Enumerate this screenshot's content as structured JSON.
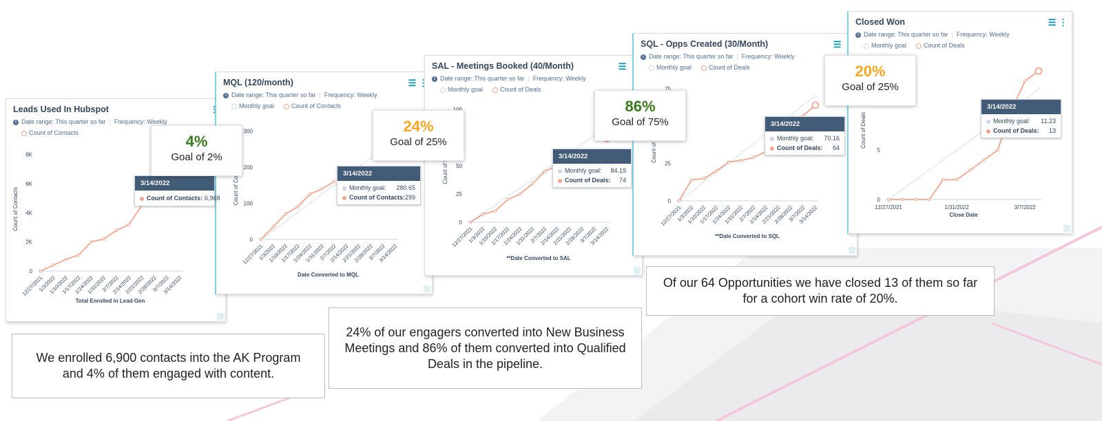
{
  "colors": {
    "green": "#3a7a1e",
    "orange": "#f5a623",
    "line": "#f2a58e",
    "goal_line": "#e4e9ef",
    "axis_text": "#33475b",
    "tooltip_header": "#425b76"
  },
  "charts": [
    {
      "title": "Leads Used In Hubspot",
      "date_range": "Date range: This quarter so far",
      "frequency": "Frequency: Weekly",
      "legend": [
        "Count of Contacts"
      ],
      "tooltip": {
        "date": "3/14/2022",
        "rows": [
          {
            "label": "Count of Contacts:",
            "value": "6,968",
            "color": "#f2a58e"
          }
        ]
      }
    },
    {
      "title": "MQL (120/month)",
      "date_range": "Date range: This quarter so far",
      "frequency": "Frequency: Weekly",
      "legend": [
        "Monthly goal",
        "Count of Contacts"
      ],
      "tooltip": {
        "date": "3/14/2022",
        "rows": [
          {
            "label": "Monthly goal:",
            "value": "280.65",
            "color": "#cbd6e2"
          },
          {
            "label": "Count of Contacts:",
            "value": "299",
            "color": "#f2a58e"
          }
        ]
      }
    },
    {
      "title": "SAL - Meetings Booked (40/Month)",
      "date_range": "Date range: This quarter so far",
      "frequency": "Frequency: Weekly",
      "legend": [
        "Monthly goal",
        "Count of Deals"
      ],
      "tooltip": {
        "date": "3/14/2022",
        "rows": [
          {
            "label": "Monthly goal:",
            "value": "84.19",
            "color": "#cbd6e2"
          },
          {
            "label": "Count of Deals:",
            "value": "74",
            "color": "#f2a58e"
          }
        ]
      }
    },
    {
      "title": "SQL - Opps Created (30/Month)",
      "date_range": "Date range: This quarter so far",
      "frequency": "Frequency: Weekly",
      "legend": [
        "Monthly goal",
        "Count of Deals"
      ],
      "tooltip": {
        "date": "3/14/2022",
        "rows": [
          {
            "label": "Monthly goal:",
            "value": "70.16",
            "color": "#cbd6e2"
          },
          {
            "label": "Count of Deals:",
            "value": "64",
            "color": "#f2a58e"
          }
        ]
      }
    },
    {
      "title": "Closed Won",
      "date_range": "Date range: This quarter so far",
      "frequency": "Frequency: Weekly",
      "legend": [
        "Monthly goal",
        "Count of Deals"
      ],
      "tooltip": {
        "date": "3/14/2022",
        "rows": [
          {
            "label": "Monthly goal:",
            "value": "11.23",
            "color": "#cbd6e2"
          },
          {
            "label": "Count of Deals:",
            "value": "13",
            "color": "#f2a58e"
          }
        ]
      }
    }
  ],
  "badges": [
    {
      "pct": "4%",
      "goal": "Goal of 2%",
      "color": "#3a7a1e"
    },
    {
      "pct": "24%",
      "goal": "Goal of 25%",
      "color": "#f5a623"
    },
    {
      "pct": "86%",
      "goal": "Goal of 75%",
      "color": "#3a7a1e"
    },
    {
      "pct": "20%",
      "goal": "Goal of 25%",
      "color": "#f5a623"
    }
  ],
  "notes": [
    "We enrolled 6,900 contacts into the AK Program and 4% of them engaged with content.",
    "24% of our engagers converted into New Business Meetings and 86% of them converted into Qualified Deals in the pipeline.",
    "Of our 64 Opportunities we have closed 13 of them so far for a cohort win rate of 20%."
  ],
  "chart_data": [
    {
      "type": "line",
      "title": "Leads Used In Hubspot",
      "xlabel": "Total Enrolled in Lead Gen",
      "ylabel": "Count of Contacts",
      "x": [
        "12/27/2021",
        "1/3/2022",
        "1/10/2022",
        "1/17/2022",
        "1/24/2022",
        "1/31/2022",
        "2/7/2022",
        "2/14/2022",
        "2/21/2022",
        "2/28/2022",
        "3/7/2022",
        "3/14/2022"
      ],
      "ylim": [
        0,
        8500
      ],
      "yticks": [
        0,
        2000,
        4000,
        6000,
        8000
      ],
      "ytick_labels": [
        "0",
        "2K",
        "4K",
        "6K",
        "8K"
      ],
      "xtick_labels": [
        "12/27/2021",
        "1/3/2022",
        "1/10/2022",
        "1/17/2022",
        "1/24/2022",
        "1/31/2022",
        "2/7/2022",
        "2/14/2022",
        "2/21/2022",
        "2/28/2022",
        "3/7/2022",
        "3/14/2022"
      ],
      "series": [
        {
          "name": "Count of Contacts",
          "values": [
            0,
            400,
            800,
            1100,
            2000,
            2200,
            2800,
            3200,
            4500,
            null,
            null,
            6968
          ]
        }
      ]
    },
    {
      "type": "line",
      "title": "MQL (120/month)",
      "xlabel": "Date Converted to MQL",
      "ylabel": "Count of Contacts",
      "x": [
        "12/27/2021",
        "1/3/2022",
        "1/10/2022",
        "1/17/2022",
        "1/24/2022",
        "1/31/2022",
        "2/7/2022",
        "2/14/2022",
        "2/21/2022",
        "2/28/2022",
        "3/7/2022",
        "3/14/2022"
      ],
      "ylim": [
        0,
        310
      ],
      "yticks": [
        0,
        100,
        200,
        300
      ],
      "ytick_labels": [
        "0",
        "100",
        "200",
        "300"
      ],
      "xtick_labels": [
        "12/27/2021",
        "1/3/2022",
        "1/10/2022",
        "1/17/2022",
        "1/24/2022",
        "1/31/2022",
        "2/7/2022",
        "2/14/2022",
        "2/21/2022",
        "2/28/2022",
        "3/7/2022",
        "3/14/2022"
      ],
      "series": [
        {
          "name": "Monthly goal",
          "values": [
            0,
            25,
            50,
            75,
            100,
            125,
            150,
            175,
            200,
            225,
            255,
            280.65
          ]
        },
        {
          "name": "Count of Contacts",
          "values": [
            0,
            35,
            70,
            90,
            125,
            140,
            160,
            null,
            null,
            null,
            null,
            299
          ]
        }
      ]
    },
    {
      "type": "line",
      "title": "SAL - Meetings Booked (40/Month)",
      "xlabel": "**Date Converted to SAL",
      "ylabel": "Count of Deals",
      "x": [
        "12/27/2021",
        "1/3/2022",
        "1/10/2022",
        "1/17/2022",
        "1/24/2022",
        "1/31/2022",
        "2/7/2022",
        "2/14/2022",
        "2/21/2022",
        "2/28/2022",
        "3/7/2022",
        "3/14/2022"
      ],
      "ylim": [
        0,
        100
      ],
      "yticks": [
        0,
        25,
        50,
        75,
        100
      ],
      "ytick_labels": [
        "0",
        "25",
        "50",
        "75",
        "100"
      ],
      "xtick_labels": [
        "12/27/2021",
        "1/3/2022",
        "1/10/2022",
        "1/17/2022",
        "1/24/2022",
        "1/31/2022",
        "2/7/2022",
        "2/14/2022",
        "2/21/2022",
        "2/28/2022",
        "3/7/2022",
        "3/14/2022"
      ],
      "series": [
        {
          "name": "Monthly goal",
          "values": [
            0,
            8,
            15,
            23,
            30,
            38,
            46,
            53,
            61,
            69,
            77,
            84.19
          ]
        },
        {
          "name": "Count of Deals",
          "values": [
            0,
            7,
            10,
            20,
            25,
            34,
            45,
            50,
            55,
            null,
            null,
            74
          ]
        }
      ]
    },
    {
      "type": "line",
      "title": "SQL - Opps Created (30/Month)",
      "xlabel": "**Date Converted to SQL",
      "ylabel": "Count of Deals",
      "x": [
        "12/27/2021",
        "1/3/2022",
        "1/10/2022",
        "1/17/2022",
        "1/24/2022",
        "1/31/2022",
        "2/7/2022",
        "2/14/2022",
        "2/21/2022",
        "2/28/2022",
        "3/7/2022",
        "3/14/2022"
      ],
      "ylim": [
        0,
        75
      ],
      "yticks": [
        0,
        25,
        50,
        75
      ],
      "ytick_labels": [
        "0",
        "25",
        "50",
        "75"
      ],
      "xtick_labels": [
        "12/27/2021",
        "1/3/2022",
        "1/10/2022",
        "1/17/2022",
        "1/24/2022",
        "1/31/2022",
        "2/7/2022",
        "2/14/2022",
        "2/21/2022",
        "2/28/2022",
        "3/7/2022",
        "3/14/2022"
      ],
      "series": [
        {
          "name": "Monthly goal",
          "values": [
            0,
            6,
            13,
            19,
            25,
            32,
            38,
            45,
            51,
            57,
            64,
            70.16
          ]
        },
        {
          "name": "Count of Deals",
          "values": [
            0,
            14,
            15,
            20,
            26,
            27,
            29,
            33,
            38,
            45,
            57,
            64
          ]
        }
      ]
    },
    {
      "type": "line",
      "title": "Closed Won",
      "xlabel": "Close Date",
      "ylabel": "Count of Deals",
      "x": [
        "12/27/2021",
        "1/3/2022",
        "1/10/2022",
        "1/17/2022",
        "1/24/2022",
        "1/31/2022",
        "2/7/2022",
        "2/14/2022",
        "2/21/2022",
        "2/28/2022",
        "3/7/2022",
        "3/14/2022"
      ],
      "ylim": [
        0,
        14
      ],
      "yticks": [
        0,
        5,
        10
      ],
      "ytick_labels": [
        "0",
        "5",
        "10"
      ],
      "xtick_labels": [
        "12/27/2021",
        "1/31/2022",
        "3/7/2022"
      ],
      "xtick_at": [
        0,
        5,
        10
      ],
      "series": [
        {
          "name": "Monthly goal",
          "values": [
            0,
            1,
            2,
            3,
            4,
            5,
            6,
            7,
            8,
            9,
            10,
            11.23
          ]
        },
        {
          "name": "Count of Deals",
          "values": [
            0,
            0,
            0,
            0,
            2,
            2,
            3,
            4,
            5,
            9,
            12,
            13
          ]
        }
      ]
    }
  ]
}
